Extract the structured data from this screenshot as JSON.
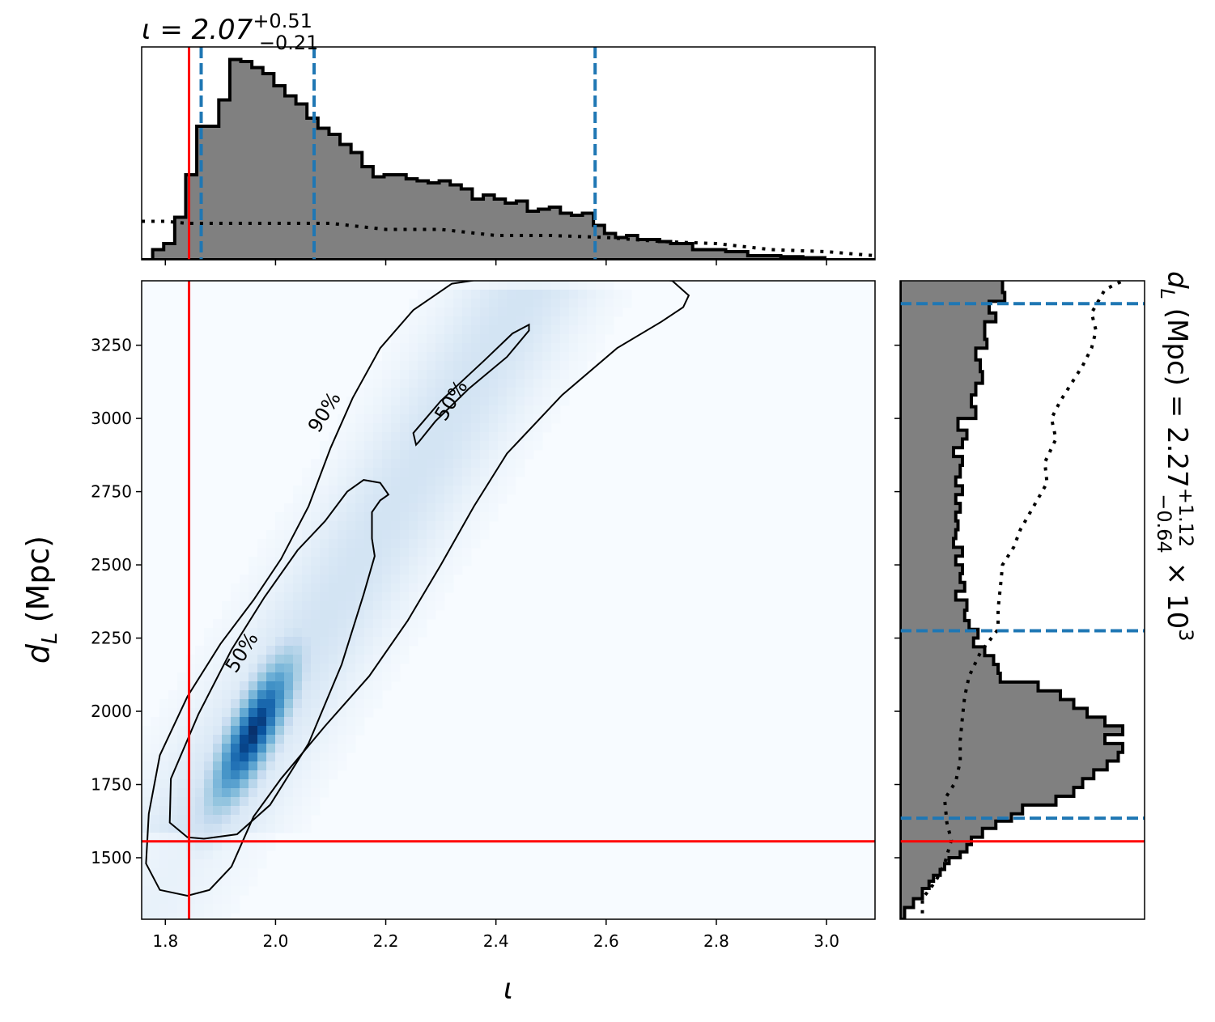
{
  "chart_data": [
    {
      "type": "histogram",
      "panel": "marginal-iota",
      "title_main": "ι = 2.07",
      "title_sup": "+0.51",
      "title_sub": "−0.21",
      "xlim": [
        1.757,
        3.088
      ],
      "x_ticks": [
        1.8,
        2.0,
        2.2,
        2.4,
        2.6,
        2.8,
        3.0
      ],
      "bins": [
        [
          1.757,
          0.0
        ],
        [
          1.777,
          0.05
        ],
        [
          1.797,
          0.08
        ],
        [
          1.817,
          0.21
        ],
        [
          1.837,
          0.42
        ],
        [
          1.857,
          0.66
        ],
        [
          1.877,
          0.66
        ],
        [
          1.897,
          0.79
        ],
        [
          1.917,
          0.99
        ],
        [
          1.937,
          0.98
        ],
        [
          1.957,
          0.95
        ],
        [
          1.977,
          0.92
        ],
        [
          1.997,
          0.86
        ],
        [
          2.017,
          0.81
        ],
        [
          2.037,
          0.77
        ],
        [
          2.057,
          0.7
        ],
        [
          2.077,
          0.65
        ],
        [
          2.097,
          0.62
        ],
        [
          2.117,
          0.57
        ],
        [
          2.137,
          0.53
        ],
        [
          2.157,
          0.46
        ],
        [
          2.177,
          0.41
        ],
        [
          2.197,
          0.42
        ],
        [
          2.217,
          0.42
        ],
        [
          2.237,
          0.4
        ],
        [
          2.257,
          0.39
        ],
        [
          2.277,
          0.38
        ],
        [
          2.297,
          0.39
        ],
        [
          2.317,
          0.37
        ],
        [
          2.337,
          0.35
        ],
        [
          2.357,
          0.3
        ],
        [
          2.377,
          0.32
        ],
        [
          2.397,
          0.3
        ],
        [
          2.417,
          0.28
        ],
        [
          2.437,
          0.29
        ],
        [
          2.457,
          0.24
        ],
        [
          2.477,
          0.25
        ],
        [
          2.497,
          0.26
        ],
        [
          2.517,
          0.23
        ],
        [
          2.537,
          0.22
        ],
        [
          2.557,
          0.23
        ],
        [
          2.577,
          0.17
        ],
        [
          2.597,
          0.13
        ],
        [
          2.617,
          0.11
        ],
        [
          2.637,
          0.12
        ],
        [
          2.657,
          0.1
        ],
        [
          2.677,
          0.1
        ],
        [
          2.697,
          0.09
        ],
        [
          2.717,
          0.08
        ],
        [
          2.737,
          0.08
        ],
        [
          2.757,
          0.05
        ],
        [
          2.777,
          0.05
        ],
        [
          2.797,
          0.05
        ],
        [
          2.817,
          0.04
        ],
        [
          2.837,
          0.04
        ],
        [
          2.857,
          0.02
        ],
        [
          2.877,
          0.02
        ],
        [
          2.897,
          0.02
        ],
        [
          2.917,
          0.015
        ],
        [
          2.937,
          0.015
        ],
        [
          2.957,
          0.01
        ],
        [
          2.977,
          0.01
        ],
        [
          2.997,
          0.0
        ],
        [
          3.088,
          0.0
        ]
      ],
      "prior_dotted": [
        [
          1.757,
          0.19
        ],
        [
          1.8,
          0.19
        ],
        [
          1.84,
          0.18
        ],
        [
          1.9,
          0.18
        ],
        [
          2.0,
          0.18
        ],
        [
          2.1,
          0.18
        ],
        [
          2.2,
          0.15
        ],
        [
          2.3,
          0.15
        ],
        [
          2.4,
          0.12
        ],
        [
          2.5,
          0.12
        ],
        [
          2.6,
          0.11
        ],
        [
          2.7,
          0.09
        ],
        [
          2.8,
          0.08
        ],
        [
          2.9,
          0.05
        ],
        [
          3.0,
          0.04
        ],
        [
          3.088,
          0.02
        ]
      ],
      "injected_value": 1.843,
      "quantile_lines": [
        1.865,
        2.07,
        2.58
      ]
    },
    {
      "type": "heatmap",
      "panel": "joint-iota-dL",
      "xlabel": "ι",
      "ylabel": "d",
      "ylabel_sub": "L",
      "ylabel_unit": " (Mpc)",
      "xlim": [
        1.757,
        3.088
      ],
      "ylim": [
        1290,
        3470
      ],
      "x_ticks": [
        1.8,
        2.0,
        2.2,
        2.4,
        2.6,
        2.8,
        3.0
      ],
      "y_ticks": [
        1500,
        1750,
        2000,
        2250,
        2500,
        2750,
        3000,
        3250
      ],
      "density_peak": {
        "iota": 1.96,
        "dL": 1920
      },
      "injected": {
        "iota": 1.843,
        "dL": 1556
      },
      "contours": [
        {
          "level": "90%",
          "label_at": [
            2.09,
            3020
          ],
          "path": [
            [
              1.84,
              1370
            ],
            [
              1.79,
              1390
            ],
            [
              1.765,
              1480
            ],
            [
              1.77,
              1650
            ],
            [
              1.79,
              1850
            ],
            [
              1.84,
              2050
            ],
            [
              1.9,
              2230
            ],
            [
              1.96,
              2380
            ],
            [
              2.01,
              2520
            ],
            [
              2.06,
              2700
            ],
            [
              2.1,
              2900
            ],
            [
              2.14,
              3070
            ],
            [
              2.19,
              3240
            ],
            [
              2.25,
              3370
            ],
            [
              2.32,
              3460
            ],
            [
              2.39,
              3480
            ],
            [
              2.55,
              3480
            ],
            [
              2.68,
              3480
            ],
            [
              2.72,
              3470
            ],
            [
              2.75,
              3420
            ],
            [
              2.74,
              3380
            ],
            [
              2.7,
              3330
            ],
            [
              2.62,
              3240
            ],
            [
              2.52,
              3080
            ],
            [
              2.42,
              2880
            ],
            [
              2.36,
              2700
            ],
            [
              2.3,
              2500
            ],
            [
              2.24,
              2310
            ],
            [
              2.17,
              2120
            ],
            [
              2.09,
              1950
            ],
            [
              2.01,
              1770
            ],
            [
              1.96,
              1640
            ],
            [
              1.92,
              1470
            ],
            [
              1.88,
              1390
            ],
            [
              1.84,
              1370
            ]
          ]
        },
        {
          "level": "50%",
          "label_at": [
            1.94,
            2200
          ],
          "path": [
            [
              1.87,
              1565
            ],
            [
              1.84,
              1570
            ],
            [
              1.808,
              1620
            ],
            [
              1.81,
              1770
            ],
            [
              1.86,
              1990
            ],
            [
              1.92,
              2210
            ],
            [
              1.98,
              2390
            ],
            [
              2.04,
              2550
            ],
            [
              2.09,
              2650
            ],
            [
              2.13,
              2750
            ],
            [
              2.16,
              2790
            ],
            [
              2.19,
              2780
            ],
            [
              2.205,
              2740
            ],
            [
              2.19,
              2720
            ],
            [
              2.175,
              2680
            ],
            [
              2.175,
              2590
            ],
            [
              2.18,
              2530
            ],
            [
              2.16,
              2400
            ],
            [
              2.12,
              2160
            ],
            [
              2.06,
              1890
            ],
            [
              1.99,
              1680
            ],
            [
              1.93,
              1580
            ],
            [
              1.87,
              1565
            ]
          ]
        },
        {
          "level": "50%",
          "label_at": [
            2.32,
            3060
          ],
          "path": [
            [
              2.255,
              2910
            ],
            [
              2.25,
              2950
            ],
            [
              2.3,
              3060
            ],
            [
              2.38,
              3200
            ],
            [
              2.43,
              3290
            ],
            [
              2.46,
              3320
            ],
            [
              2.46,
              3300
            ],
            [
              2.42,
              3210
            ],
            [
              2.35,
              3100
            ],
            [
              2.29,
              2990
            ],
            [
              2.26,
              2920
            ],
            [
              2.255,
              2910
            ]
          ]
        }
      ]
    },
    {
      "type": "histogram",
      "panel": "marginal-dL",
      "orientation": "horizontal",
      "title_main": "d",
      "title_sub_letter": "L",
      "title_rest": " (Mpc) = 2.27",
      "title_sup": "+1.12",
      "title_sub": "−0.64",
      "title_tail": " × 10",
      "title_exp": "3",
      "ylim": [
        1290,
        3470
      ],
      "bins": [
        [
          1290,
          0.02
        ],
        [
          1330,
          0.06
        ],
        [
          1360,
          0.1
        ],
        [
          1395,
          0.13
        ],
        [
          1420,
          0.15
        ],
        [
          1440,
          0.18
        ],
        [
          1460,
          0.2
        ],
        [
          1480,
          0.22
        ],
        [
          1500,
          0.27
        ],
        [
          1520,
          0.3
        ],
        [
          1545,
          0.32
        ],
        [
          1570,
          0.37
        ],
        [
          1600,
          0.43
        ],
        [
          1625,
          0.5
        ],
        [
          1650,
          0.55
        ],
        [
          1680,
          0.7
        ],
        [
          1710,
          0.78
        ],
        [
          1740,
          0.82
        ],
        [
          1770,
          0.87
        ],
        [
          1800,
          0.93
        ],
        [
          1830,
          0.98
        ],
        [
          1860,
          1.0
        ],
        [
          1890,
          0.92
        ],
        [
          1920,
          1.0
        ],
        [
          1950,
          0.92
        ],
        [
          1980,
          0.84
        ],
        [
          2010,
          0.78
        ],
        [
          2040,
          0.72
        ],
        [
          2070,
          0.62
        ],
        [
          2100,
          0.45
        ],
        [
          2130,
          0.44
        ],
        [
          2160,
          0.42
        ],
        [
          2190,
          0.38
        ],
        [
          2220,
          0.33
        ],
        [
          2250,
          0.35
        ],
        [
          2280,
          0.31
        ],
        [
          2310,
          0.29
        ],
        [
          2345,
          0.3
        ],
        [
          2380,
          0.25
        ],
        [
          2410,
          0.29
        ],
        [
          2440,
          0.27
        ],
        [
          2470,
          0.28
        ],
        [
          2500,
          0.25
        ],
        [
          2530,
          0.28
        ],
        [
          2560,
          0.24
        ],
        [
          2590,
          0.25
        ],
        [
          2620,
          0.26
        ],
        [
          2650,
          0.25
        ],
        [
          2680,
          0.27
        ],
        [
          2710,
          0.25
        ],
        [
          2740,
          0.28
        ],
        [
          2770,
          0.25
        ],
        [
          2800,
          0.27
        ],
        [
          2840,
          0.28
        ],
        [
          2870,
          0.24
        ],
        [
          2900,
          0.28
        ],
        [
          2930,
          0.3
        ],
        [
          2960,
          0.26
        ],
        [
          3000,
          0.34
        ],
        [
          3040,
          0.32
        ],
        [
          3080,
          0.34
        ],
        [
          3120,
          0.37
        ],
        [
          3160,
          0.36
        ],
        [
          3200,
          0.34
        ],
        [
          3240,
          0.39
        ],
        [
          3270,
          0.38
        ],
        [
          3300,
          0.38
        ],
        [
          3330,
          0.43
        ],
        [
          3360,
          0.4
        ],
        [
          3400,
          0.47
        ],
        [
          3430,
          0.46
        ],
        [
          3470,
          0.46
        ]
      ],
      "prior_dotted": [
        [
          1310,
          0.1
        ],
        [
          1360,
          0.1
        ],
        [
          1420,
          0.16
        ],
        [
          1480,
          0.2
        ],
        [
          1560,
          0.23
        ],
        [
          1620,
          0.21
        ],
        [
          1700,
          0.2
        ],
        [
          1760,
          0.25
        ],
        [
          1830,
          0.27
        ],
        [
          1900,
          0.27
        ],
        [
          1980,
          0.28
        ],
        [
          2050,
          0.29
        ],
        [
          2120,
          0.31
        ],
        [
          2200,
          0.36
        ],
        [
          2280,
          0.44
        ],
        [
          2350,
          0.44
        ],
        [
          2420,
          0.45
        ],
        [
          2500,
          0.46
        ],
        [
          2560,
          0.51
        ],
        [
          2620,
          0.54
        ],
        [
          2700,
          0.6
        ],
        [
          2780,
          0.66
        ],
        [
          2850,
          0.65
        ],
        [
          2930,
          0.7
        ],
        [
          3000,
          0.68
        ],
        [
          3060,
          0.72
        ],
        [
          3120,
          0.77
        ],
        [
          3180,
          0.82
        ],
        [
          3240,
          0.86
        ],
        [
          3300,
          0.88
        ],
        [
          3360,
          0.86
        ],
        [
          3400,
          0.89
        ],
        [
          3440,
          0.92
        ],
        [
          3470,
          1.0
        ]
      ],
      "injected_value": 1556,
      "quantile_lines": [
        1635,
        2275,
        3392
      ]
    }
  ]
}
